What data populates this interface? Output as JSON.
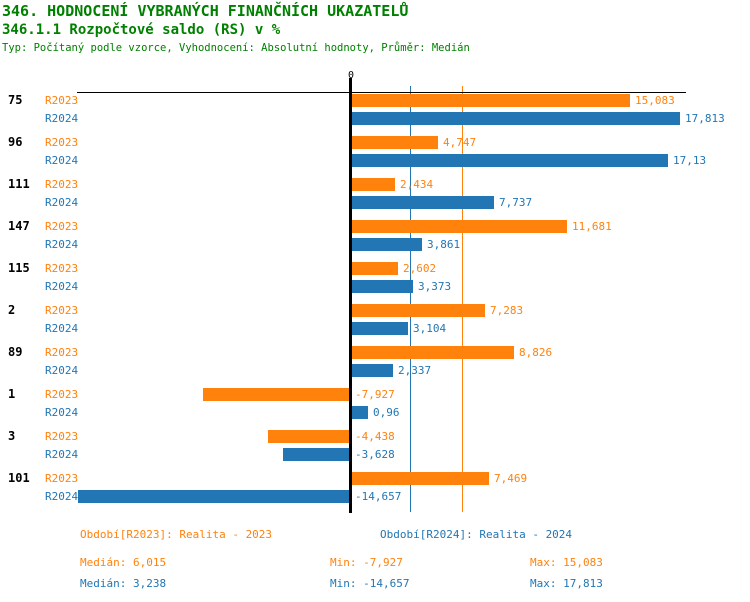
{
  "header": {
    "title": "346. HODNOCENÍ VYBRANÝCH FINANČNÍCH UKAZATELŮ",
    "subtitle": "346.1.1 Rozpočtové saldo (RS) v %",
    "meta": "Typ: Počítaný podle vzorce, Vyhodnocení: Absolutní hodnoty, Průměr: Medián"
  },
  "colors": {
    "header_green": "#008000",
    "axis_black": "#000000",
    "series_2023_orange": "#FF820D",
    "series_2024_blue": "#2276B4"
  },
  "chart_data": {
    "type": "bar",
    "orientation": "horizontal",
    "zero_tick_label": "0",
    "categories": [
      "75",
      "96",
      "111",
      "147",
      "115",
      "2",
      "89",
      "1",
      "3",
      "101"
    ],
    "series": [
      {
        "name": "R2023",
        "color": "#FF820D",
        "values": [
          15.083,
          4.747,
          2.434,
          11.681,
          2.602,
          7.283,
          8.826,
          -7.927,
          -4.438,
          7.469
        ],
        "value_labels": [
          "15,083",
          "4,747",
          "2,434",
          "11,681",
          "2,602",
          "7,283",
          "8,826",
          "-7,927",
          "-4,438",
          "7,469"
        ]
      },
      {
        "name": "R2024",
        "color": "#2276B4",
        "values": [
          17.813,
          17.13,
          7.737,
          3.861,
          3.373,
          3.104,
          2.337,
          0.96,
          -3.628,
          -14.657
        ],
        "value_labels": [
          "17,813",
          "17,13",
          "7,737",
          "3,861",
          "3,373",
          "3,104",
          "2,337",
          "0,96",
          "-3,628",
          "-14,657"
        ]
      }
    ],
    "reference_lines": [
      {
        "name": "median-r2024",
        "value": 3.238,
        "color": "#2276B4"
      },
      {
        "name": "median-r2023",
        "value": 6.015,
        "color": "#FF820D"
      }
    ],
    "xlim": [
      -14.7,
      18.1
    ],
    "grid": "off",
    "legend_position": "bottom"
  },
  "footer": {
    "legend": [
      {
        "label": "Období[R2023]: Realita - 2023"
      },
      {
        "label": "Období[R2024]: Realita - 2024"
      }
    ],
    "stats": [
      {
        "median": "Medián: 6,015",
        "min": "Min: -7,927",
        "max": "Max: 15,083"
      },
      {
        "median": "Medián: 3,238",
        "min": "Min: -14,657",
        "max": "Max: 17,813"
      }
    ]
  }
}
